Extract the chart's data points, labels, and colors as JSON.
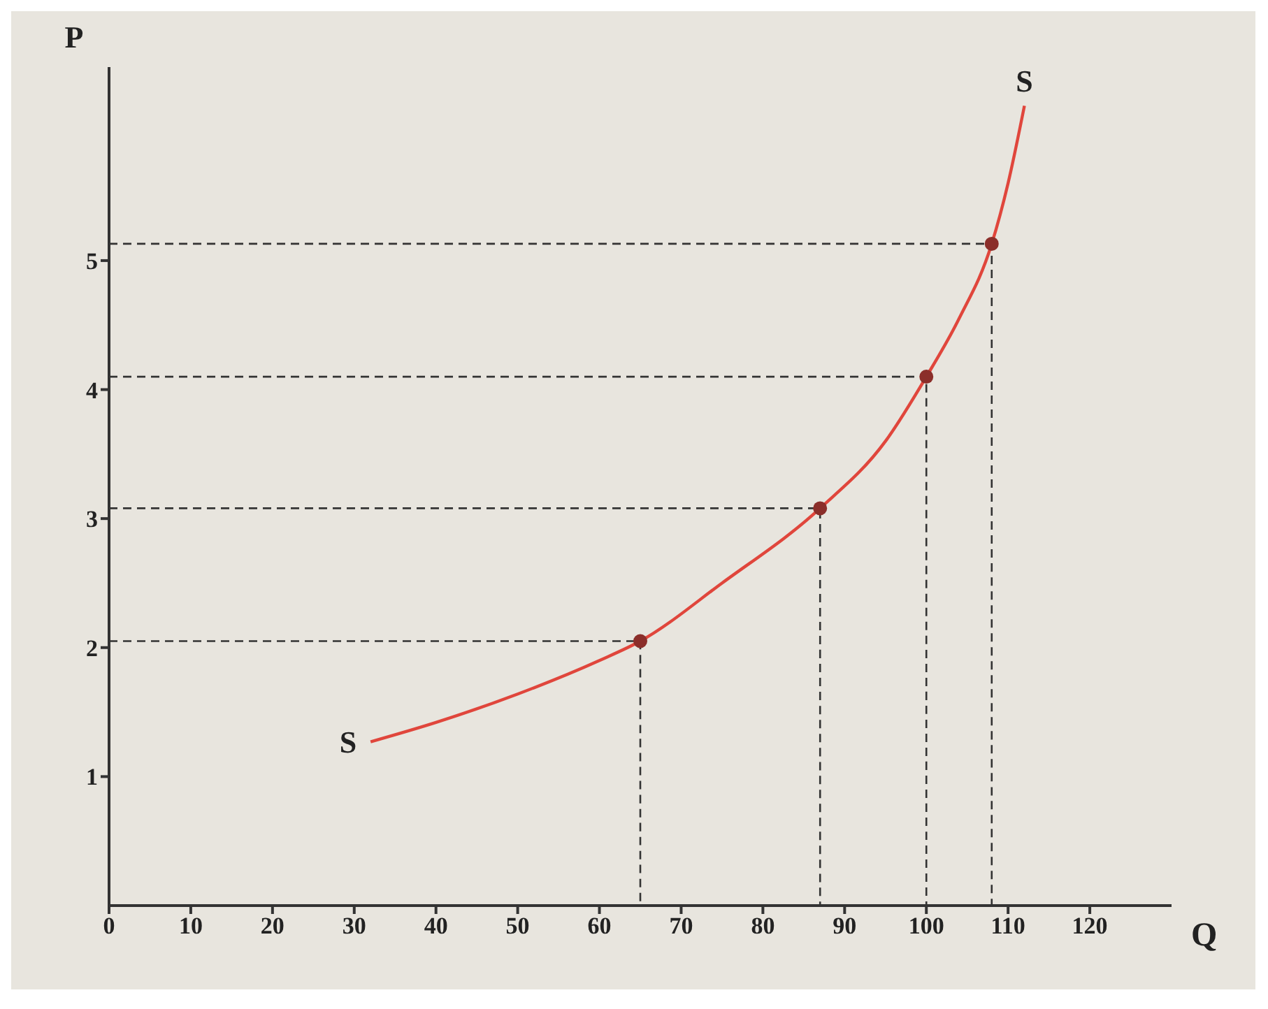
{
  "chart_data": {
    "type": "line",
    "xlabel": "Q",
    "ylabel": "P",
    "xlim": [
      0,
      130
    ],
    "xticks": [
      0,
      10,
      20,
      30,
      40,
      50,
      60,
      70,
      80,
      90,
      100,
      110,
      120
    ],
    "ylim": [
      0,
      6.5
    ],
    "yticks": [
      1,
      2,
      3,
      4,
      5
    ],
    "grid": false,
    "annotations": [
      {
        "text": "S",
        "x": 32,
        "y": 1.27
      },
      {
        "text": "S",
        "x": 112,
        "y": 6.2
      }
    ],
    "series": [
      {
        "color": "#e0463c",
        "marker": "none",
        "line_style": "solid",
        "x": [
          32,
          40,
          50,
          60,
          65,
          75,
          87,
          95,
          100,
          104,
          108,
          110,
          112
        ],
        "values": [
          1.27,
          1.42,
          1.64,
          1.9,
          2.05,
          2.5,
          3.08,
          3.6,
          4.1,
          4.55,
          5.13,
          5.6,
          6.2
        ]
      },
      {
        "type": "line",
        "color": "#333333",
        "marker": "none",
        "line_style": "dashed",
        "x": [
          0,
          65,
          65
        ],
        "values": [
          2.05,
          2.05,
          0
        ]
      },
      {
        "type": "line",
        "color": "#333333",
        "marker": "none",
        "line_style": "dashed",
        "x": [
          0,
          87,
          87
        ],
        "values": [
          3.08,
          3.08,
          0
        ]
      },
      {
        "type": "line",
        "color": "#333333",
        "marker": "none",
        "line_style": "dashed",
        "x": [
          0,
          100,
          100
        ],
        "values": [
          4.1,
          4.1,
          0
        ]
      },
      {
        "type": "line",
        "color": "#333333",
        "marker": "none",
        "line_style": "dashed",
        "x": [
          0,
          108,
          108
        ],
        "values": [
          5.13,
          5.13,
          0
        ]
      },
      {
        "type": "scatter",
        "color": "#8b2e2a",
        "marker": "circle",
        "x": [
          65,
          87,
          100,
          108
        ],
        "values": [
          2.05,
          3.08,
          4.1,
          5.13
        ]
      }
    ]
  }
}
